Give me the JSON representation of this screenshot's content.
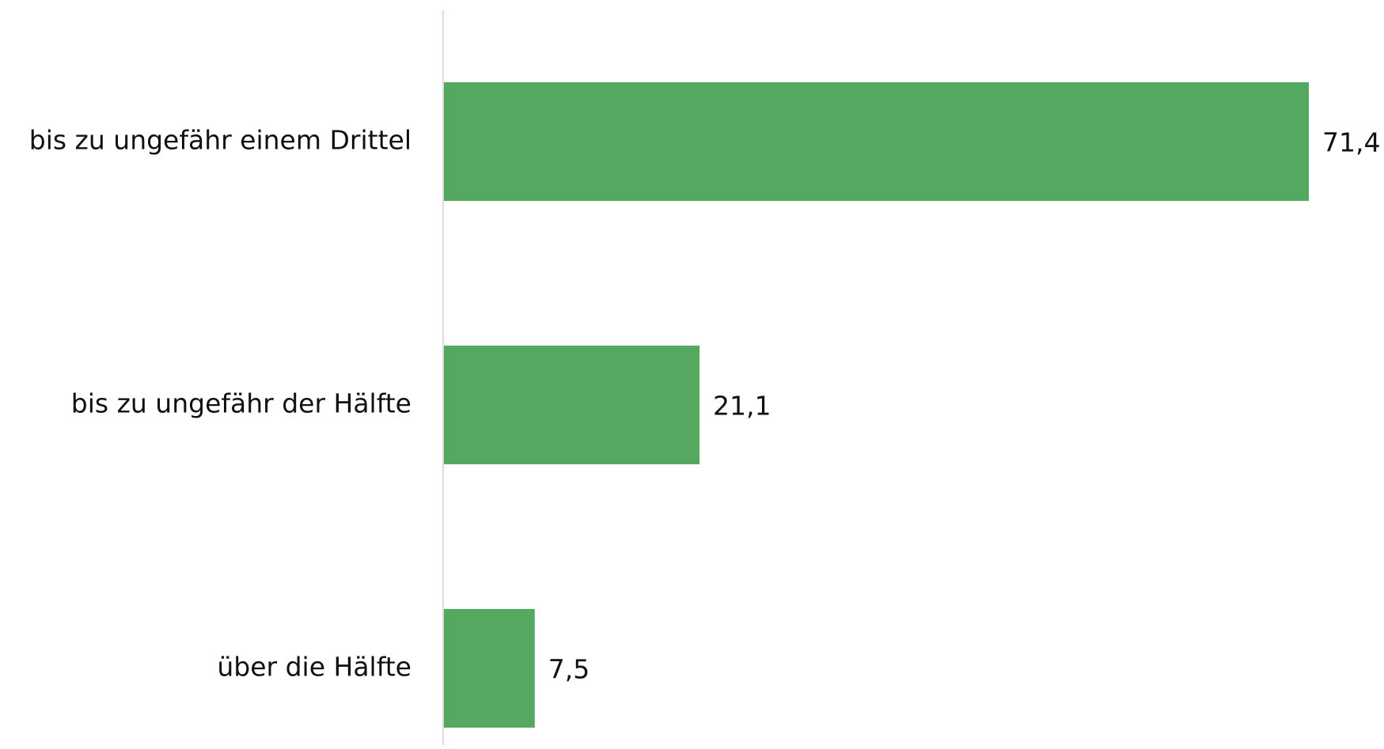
{
  "chart_data": {
    "type": "hbar",
    "categories": [
      "bis zu ungefähr einem Drittel",
      "bis zu ungefähr der Hälfte",
      "über die Hälfte"
    ],
    "values": [
      71.4,
      21.1,
      7.5
    ],
    "value_labels": [
      "71,4",
      "21,1",
      "7,5"
    ],
    "color": "#55a860"
  }
}
